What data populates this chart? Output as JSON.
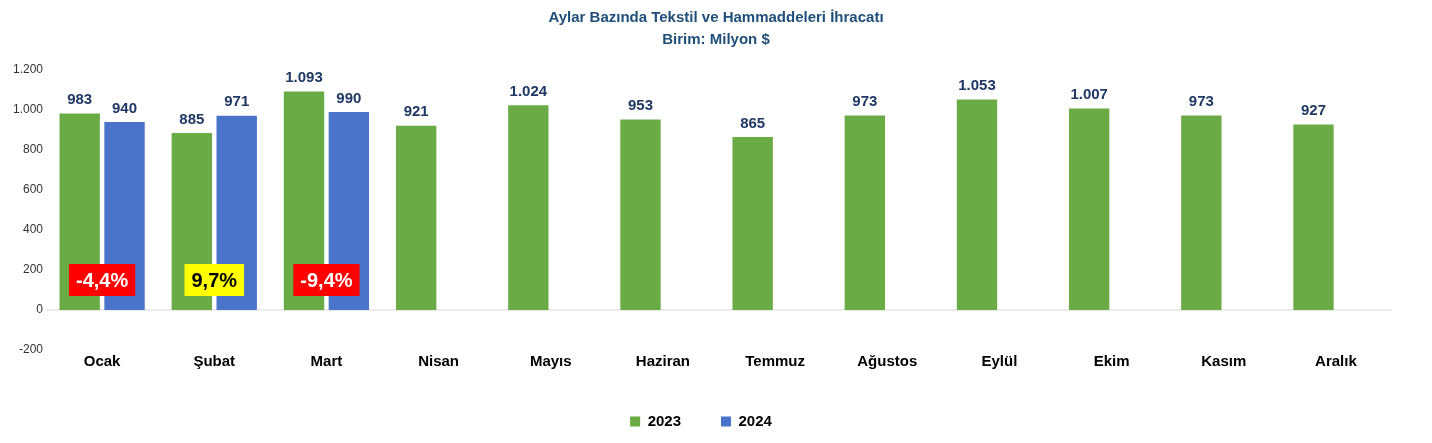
{
  "chart_data": {
    "type": "bar",
    "title": "Aylar Bazında Tekstil ve Hammaddeleri İhracatı",
    "subtitle": "Birim: Milyon $",
    "categories": [
      "Ocak",
      "Şubat",
      "Mart",
      "Nisan",
      "Mayıs",
      "Haziran",
      "Temmuz",
      "Ağustos",
      "Eylül",
      "Ekim",
      "Kasım",
      "Aralık"
    ],
    "series": [
      {
        "name": "2023",
        "color": "#6aab45",
        "values": [
          983,
          885,
          1093,
          921,
          1024,
          953,
          865,
          973,
          1053,
          1007,
          973,
          927
        ],
        "value_labels": [
          "983",
          "885",
          "1.093",
          "921",
          "1.024",
          "953",
          "865",
          "973",
          "1.053",
          "1.007",
          "973",
          "927"
        ]
      },
      {
        "name": "2024",
        "color": "#4a74c9",
        "values": [
          940,
          971,
          990,
          null,
          null,
          null,
          null,
          null,
          null,
          null,
          null,
          null
        ],
        "value_labels": [
          "940",
          "971",
          "990",
          null,
          null,
          null,
          null,
          null,
          null,
          null,
          null,
          null
        ]
      }
    ],
    "ylim": [
      -200,
      1200
    ],
    "yticks": [
      -200,
      0,
      200,
      400,
      600,
      800,
      {
        "value": 1000,
        "label": "1.000"
      },
      {
        "value": 1200,
        "label": "1.200"
      }
    ],
    "legend": "bottom",
    "annotations": [
      {
        "text": "-4,4%",
        "x": "Ocak",
        "y": 150
      },
      {
        "text": "9,7%",
        "x": "Şubat",
        "y": 150
      },
      {
        "text": "-9,4%",
        "x": "Mart",
        "y": 150
      }
    ]
  }
}
